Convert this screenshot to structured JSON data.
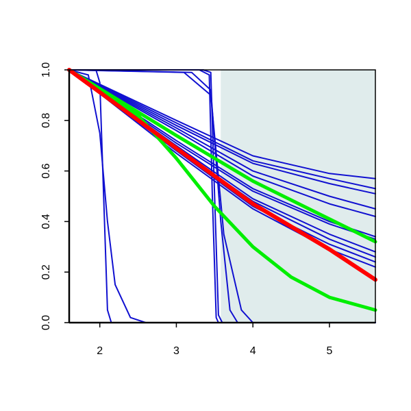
{
  "chart_data": {
    "type": "line",
    "title": "",
    "xlabel": "",
    "ylabel": "",
    "xlim": [
      1.6,
      5.6
    ],
    "ylim": [
      0.0,
      1.0
    ],
    "x_ticks": [
      2,
      3,
      4,
      5
    ],
    "x_tick_labels": [
      "2",
      "3",
      "4",
      "5"
    ],
    "y_ticks": [
      0.0,
      0.2,
      0.4,
      0.6,
      0.8,
      1.0
    ],
    "y_tick_labels": [
      "0.0",
      "0.2",
      "0.4",
      "0.6",
      "0.8",
      "1.0"
    ],
    "grid": false,
    "legend": "none",
    "shaded_region": {
      "x_start": 3.58,
      "x_end": 5.6,
      "color": "#e0ecec"
    },
    "colors": {
      "blue": "#1010d0",
      "red": "#ff0000",
      "green": "#00ee00",
      "frame": "#000000"
    },
    "series": [
      {
        "color": "blue",
        "points": [
          [
            1.6,
            1.0
          ],
          [
            3.0,
            0.8
          ],
          [
            4.0,
            0.66
          ],
          [
            5.0,
            0.59
          ],
          [
            5.6,
            0.57
          ]
        ]
      },
      {
        "color": "blue",
        "points": [
          [
            1.6,
            1.0
          ],
          [
            3.0,
            0.79
          ],
          [
            4.0,
            0.64
          ],
          [
            5.0,
            0.57
          ],
          [
            5.6,
            0.53
          ]
        ]
      },
      {
        "color": "blue",
        "points": [
          [
            1.6,
            1.0
          ],
          [
            3.0,
            0.78
          ],
          [
            4.0,
            0.63
          ],
          [
            5.0,
            0.55
          ],
          [
            5.6,
            0.51
          ]
        ]
      },
      {
        "color": "blue",
        "points": [
          [
            1.6,
            1.0
          ],
          [
            3.0,
            0.77
          ],
          [
            4.0,
            0.6
          ],
          [
            5.0,
            0.5
          ],
          [
            5.6,
            0.45
          ]
        ]
      },
      {
        "color": "blue",
        "points": [
          [
            1.6,
            1.0
          ],
          [
            3.0,
            0.76
          ],
          [
            4.0,
            0.58
          ],
          [
            5.0,
            0.47
          ],
          [
            5.6,
            0.42
          ]
        ]
      },
      {
        "color": "blue",
        "points": [
          [
            1.6,
            1.0
          ],
          [
            3.0,
            0.72
          ],
          [
            4.0,
            0.53
          ],
          [
            5.0,
            0.4
          ],
          [
            5.6,
            0.34
          ]
        ]
      },
      {
        "color": "blue",
        "points": [
          [
            1.6,
            1.0
          ],
          [
            3.0,
            0.71
          ],
          [
            4.0,
            0.52
          ],
          [
            5.0,
            0.39
          ],
          [
            5.6,
            0.33
          ]
        ]
      },
      {
        "color": "blue",
        "points": [
          [
            1.6,
            1.0
          ],
          [
            3.0,
            0.7
          ],
          [
            4.0,
            0.49
          ],
          [
            5.0,
            0.35
          ],
          [
            5.6,
            0.28
          ]
        ]
      },
      {
        "color": "blue",
        "points": [
          [
            1.6,
            1.0
          ],
          [
            3.0,
            0.69
          ],
          [
            4.0,
            0.48
          ],
          [
            5.0,
            0.33
          ],
          [
            5.6,
            0.26
          ]
        ]
      },
      {
        "color": "blue",
        "points": [
          [
            1.6,
            1.0
          ],
          [
            3.0,
            0.68
          ],
          [
            4.0,
            0.46
          ],
          [
            5.0,
            0.31
          ],
          [
            5.6,
            0.24
          ]
        ]
      },
      {
        "color": "blue",
        "points": [
          [
            1.6,
            1.0
          ],
          [
            3.0,
            0.67
          ],
          [
            4.0,
            0.45
          ],
          [
            5.0,
            0.29
          ],
          [
            5.6,
            0.22
          ]
        ]
      },
      {
        "color": "blue",
        "points": [
          [
            1.6,
            1.0
          ],
          [
            1.85,
            0.98
          ],
          [
            2.0,
            0.75
          ],
          [
            2.1,
            0.4
          ],
          [
            2.2,
            0.15
          ],
          [
            2.4,
            0.02
          ],
          [
            2.6,
            0.0
          ],
          [
            5.6,
            0.0
          ]
        ]
      },
      {
        "color": "blue",
        "points": [
          [
            1.6,
            1.0
          ],
          [
            1.95,
            1.0
          ],
          [
            2.0,
            0.95
          ],
          [
            2.05,
            0.5
          ],
          [
            2.1,
            0.05
          ],
          [
            2.15,
            0.0
          ],
          [
            5.6,
            0.0
          ]
        ]
      },
      {
        "color": "blue",
        "points": [
          [
            1.6,
            1.0
          ],
          [
            3.3,
            1.0
          ],
          [
            3.43,
            0.98
          ],
          [
            3.47,
            0.5
          ],
          [
            3.52,
            0.02
          ],
          [
            3.55,
            0.0
          ],
          [
            5.6,
            0.0
          ]
        ]
      },
      {
        "color": "blue",
        "points": [
          [
            1.6,
            1.0
          ],
          [
            3.35,
            1.0
          ],
          [
            3.45,
            0.99
          ],
          [
            3.5,
            0.5
          ],
          [
            3.55,
            0.03
          ],
          [
            3.6,
            0.0
          ],
          [
            5.6,
            0.0
          ]
        ]
      },
      {
        "color": "blue",
        "points": [
          [
            1.6,
            1.0
          ],
          [
            3.2,
            0.99
          ],
          [
            3.45,
            0.92
          ],
          [
            3.58,
            0.4
          ],
          [
            3.7,
            0.05
          ],
          [
            3.8,
            0.0
          ],
          [
            5.6,
            0.0
          ]
        ]
      },
      {
        "color": "blue",
        "points": [
          [
            1.6,
            1.0
          ],
          [
            3.1,
            0.99
          ],
          [
            3.45,
            0.9
          ],
          [
            3.62,
            0.35
          ],
          [
            3.85,
            0.05
          ],
          [
            4.0,
            0.0
          ],
          [
            5.6,
            0.0
          ]
        ]
      },
      {
        "color": "red",
        "points": [
          [
            1.6,
            1.0
          ],
          [
            3.0,
            0.69
          ],
          [
            4.0,
            0.47
          ],
          [
            5.0,
            0.29
          ],
          [
            5.6,
            0.17
          ]
        ]
      },
      {
        "color": "green",
        "points": [
          [
            1.6,
            1.0
          ],
          [
            3.0,
            0.74
          ],
          [
            4.0,
            0.56
          ],
          [
            5.0,
            0.41
          ],
          [
            5.6,
            0.32
          ]
        ]
      },
      {
        "color": "green",
        "points": [
          [
            1.6,
            1.0
          ],
          [
            2.5,
            0.82
          ],
          [
            3.0,
            0.65
          ],
          [
            3.5,
            0.46
          ],
          [
            4.0,
            0.3
          ],
          [
            4.5,
            0.18
          ],
          [
            5.0,
            0.1
          ],
          [
            5.6,
            0.05
          ]
        ]
      }
    ]
  }
}
